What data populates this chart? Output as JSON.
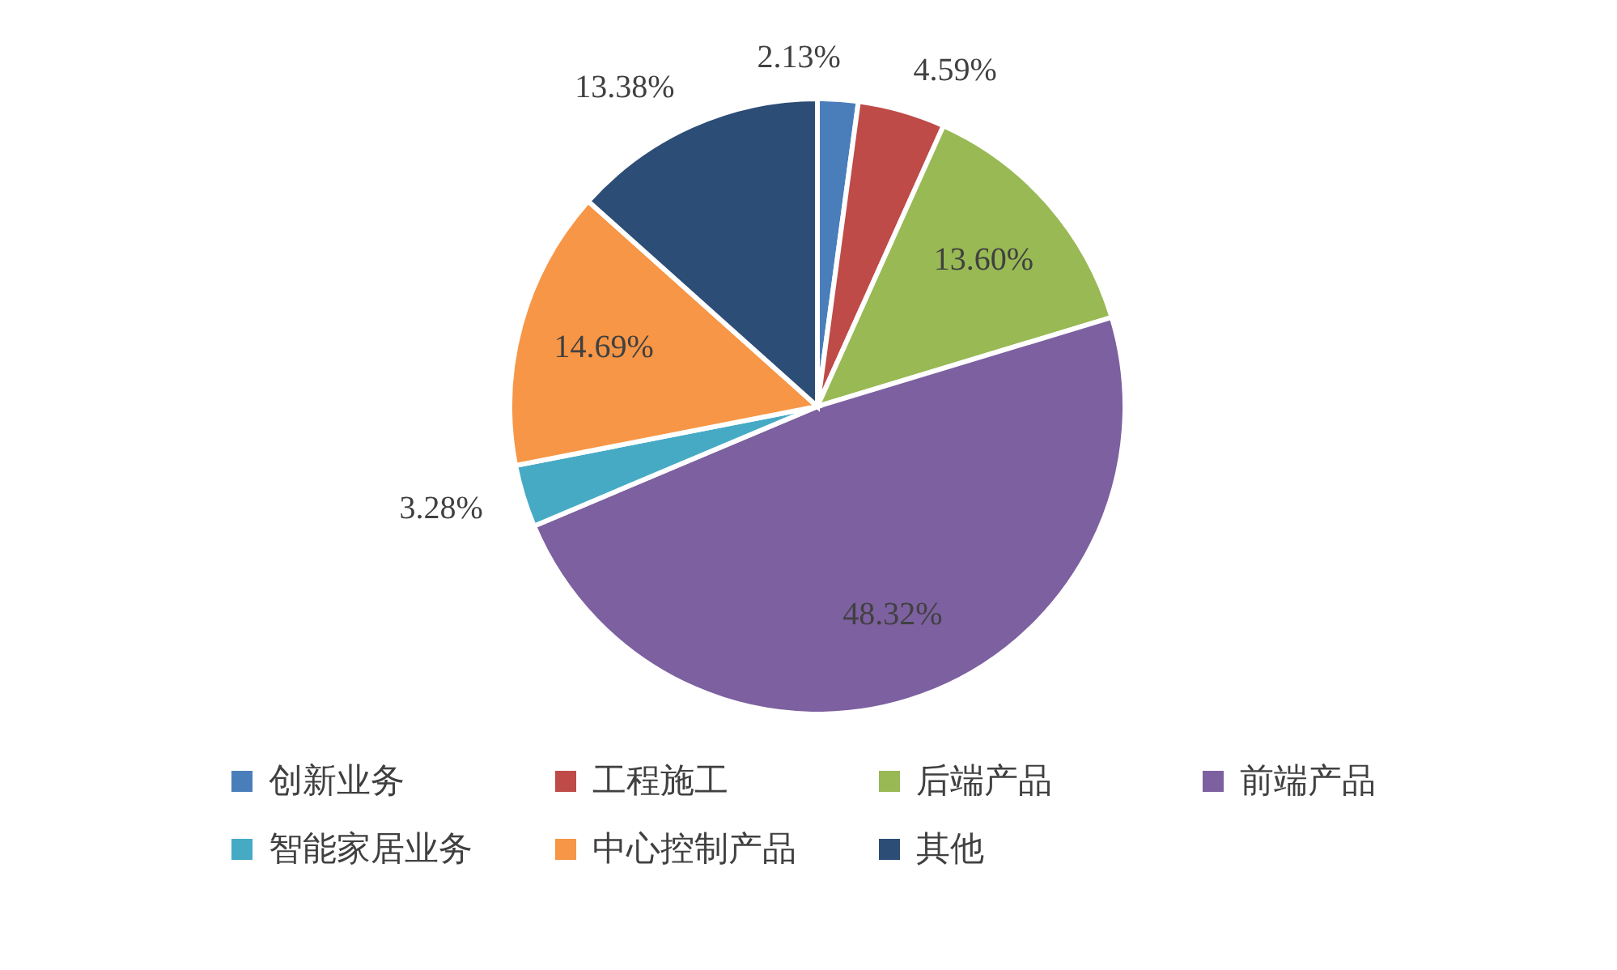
{
  "chart_data": {
    "type": "pie",
    "categories": [
      "创新业务",
      "工程施工",
      "后端产品",
      "前端产品",
      "智能家居业务",
      "中心控制产品",
      "其他"
    ],
    "values": [
      2.13,
      4.59,
      13.6,
      48.32,
      3.28,
      14.69,
      13.38
    ],
    "colors": [
      "#4a7ebb",
      "#be4b48",
      "#98b954",
      "#7d60a0",
      "#46aac5",
      "#f79646",
      "#2c4d75"
    ],
    "value_labels": [
      "2.13%",
      "4.59%",
      "13.60%",
      "48.32%",
      "3.28%",
      "14.69%",
      "13.38%"
    ],
    "legend": "bottom"
  }
}
